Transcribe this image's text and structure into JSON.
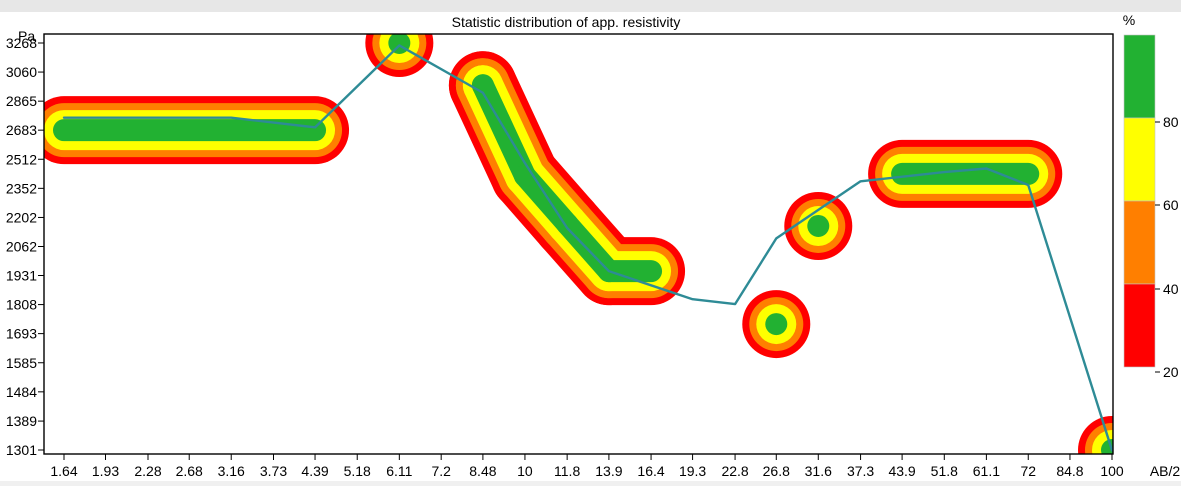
{
  "chart_data": {
    "type": "heatmap",
    "title": "Statistic distribution of app. resistivity",
    "y_unit_label": "Pa",
    "x_unit_label": "AB/2",
    "legend_unit_label": "%",
    "legend_placement": "right",
    "y_scale": "log",
    "x_scale": "log",
    "grid": false,
    "y_ticks": [
      "3268",
      "3060",
      "2865",
      "2683",
      "2512",
      "2352",
      "2202",
      "2062",
      "1931",
      "1808",
      "1693",
      "1585",
      "1484",
      "1389",
      "1301"
    ],
    "x_ticks": [
      "1.64",
      "1.93",
      "2.28",
      "2.68",
      "3.16",
      "3.73",
      "4.39",
      "5.18",
      "6.11",
      "7.2",
      "8.48",
      "10",
      "11.8",
      "13.9",
      "16.4",
      "19.3",
      "22.8",
      "26.8",
      "31.6",
      "37.3",
      "43.9",
      "51.8",
      "61.1",
      "72",
      "84.8",
      "100"
    ],
    "legend_ticks": [
      "80",
      "60",
      "40",
      "20"
    ],
    "legend_bands": [
      {
        "label": "80-100",
        "color": "#22b132"
      },
      {
        "label": "60-80",
        "color": "#ffff00"
      },
      {
        "label": "40-60",
        "color": "#ff7f00"
      },
      {
        "label": "20-40",
        "color": "#ff0000"
      }
    ],
    "colors": {
      "red": "#ff0000",
      "orange": "#ff7f00",
      "yellow": "#ffff00",
      "green": "#22b132",
      "curve": "#2e8b96"
    },
    "curve": [
      {
        "x": 1.64,
        "y": 2760
      },
      {
        "x": 3.16,
        "y": 2760
      },
      {
        "x": 4.39,
        "y": 2700
      },
      {
        "x": 6.11,
        "y": 3250
      },
      {
        "x": 8.48,
        "y": 2920
      },
      {
        "x": 10,
        "y": 2490
      },
      {
        "x": 11.8,
        "y": 2150
      },
      {
        "x": 13.9,
        "y": 1950
      },
      {
        "x": 19.3,
        "y": 1830
      },
      {
        "x": 22.8,
        "y": 1810
      },
      {
        "x": 26.8,
        "y": 2100
      },
      {
        "x": 37.3,
        "y": 2390
      },
      {
        "x": 51.8,
        "y": 2440
      },
      {
        "x": 61.1,
        "y": 2460
      },
      {
        "x": 72,
        "y": 2370
      },
      {
        "x": 100,
        "y": 1300
      }
    ],
    "density_bands": [
      {
        "x_start": 1.64,
        "x_end": 4.39,
        "y": 2683
      },
      {
        "x_start": 6.11,
        "x_end": 6.11,
        "y": 3268
      },
      {
        "x_start": 8.48,
        "x_end": 8.48,
        "y": 2970
      },
      {
        "x_start": 10,
        "x_end": 10,
        "y": 2420
      },
      {
        "x_start": 11.8,
        "x_end": 11.8,
        "y": 2170
      },
      {
        "x_start": 13.9,
        "x_end": 16.4,
        "y": 1950
      },
      {
        "x_start": 26.8,
        "x_end": 26.8,
        "y": 1730
      },
      {
        "x_start": 31.6,
        "x_end": 31.6,
        "y": 2160
      },
      {
        "x_start": 43.9,
        "x_end": 72,
        "y": 2430
      },
      {
        "x_start": 100,
        "x_end": 100,
        "y": 1301
      }
    ]
  }
}
